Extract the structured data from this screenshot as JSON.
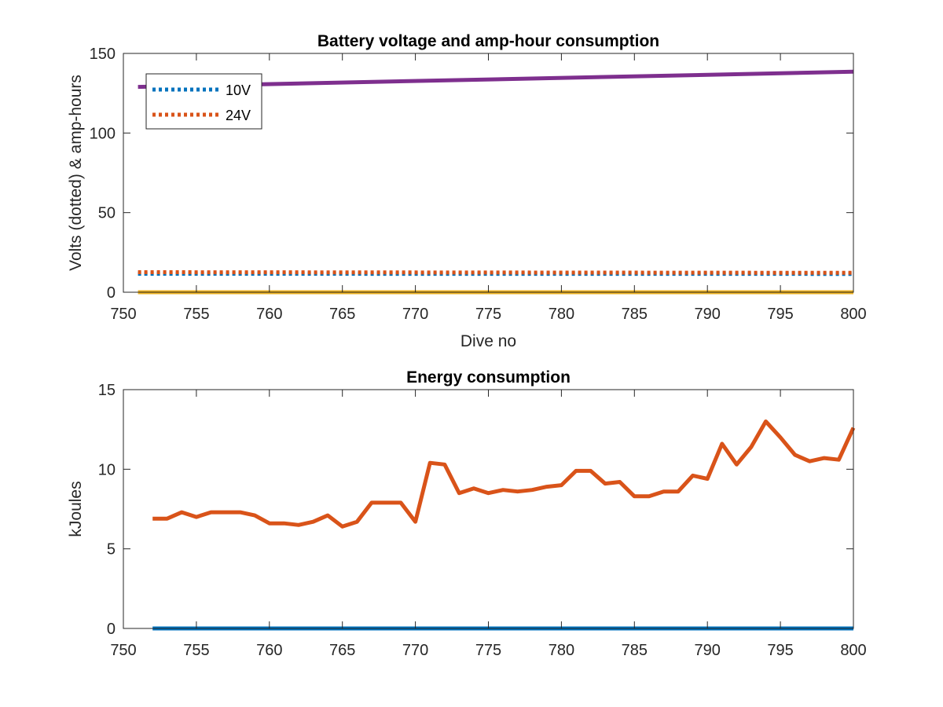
{
  "chart_data": [
    {
      "type": "line",
      "title": "Battery voltage and amp-hour consumption",
      "xlabel": "Dive no",
      "ylabel": "Volts (dotted) & amp-hours",
      "xlim": [
        750,
        800
      ],
      "ylim": [
        0,
        150
      ],
      "xticks": [
        750,
        755,
        760,
        765,
        770,
        775,
        780,
        785,
        790,
        795,
        800
      ],
      "yticks": [
        0,
        50,
        100,
        150
      ],
      "grid": false,
      "legend_position": "top-left",
      "series": [
        {
          "name": "10V",
          "style": "dotted",
          "color": "#0072BD",
          "x": [
            751,
            800
          ],
          "values": [
            11.6,
            11.5
          ]
        },
        {
          "name": "24V",
          "style": "dotted",
          "color": "#D95319",
          "x": [
            751,
            800
          ],
          "values": [
            12.6,
            12.2
          ]
        },
        {
          "style": "solid",
          "color": "#7E2F8E",
          "x": [
            751,
            800
          ],
          "values": [
            129,
            138.5
          ]
        },
        {
          "style": "solid",
          "color": "#EDB120",
          "x": [
            751,
            800
          ],
          "values": [
            0,
            0
          ]
        }
      ]
    },
    {
      "type": "line",
      "title": "Energy consumption",
      "xlabel": "",
      "ylabel": "kJoules",
      "xlim": [
        750,
        800
      ],
      "ylim": [
        0,
        15
      ],
      "xticks": [
        750,
        755,
        760,
        765,
        770,
        775,
        780,
        785,
        790,
        795,
        800
      ],
      "yticks": [
        0,
        5,
        10,
        15
      ],
      "grid": false,
      "series": [
        {
          "style": "solid",
          "color": "#0072BD",
          "x": [
            752,
            800
          ],
          "values": [
            0,
            0
          ]
        },
        {
          "style": "solid",
          "color": "#D95319",
          "x": [
            752,
            753,
            754,
            755,
            756,
            757,
            758,
            759,
            760,
            761,
            762,
            763,
            764,
            765,
            766,
            767,
            768,
            769,
            770,
            771,
            772,
            773,
            774,
            775,
            776,
            777,
            778,
            779,
            780,
            781,
            782,
            783,
            784,
            785,
            786,
            787,
            788,
            789,
            790,
            791,
            792,
            793,
            794,
            795,
            796,
            797,
            798,
            799,
            800
          ],
          "values": [
            6.9,
            6.9,
            7.3,
            7.0,
            7.3,
            7.3,
            7.3,
            7.1,
            6.6,
            6.6,
            6.5,
            6.7,
            7.1,
            6.4,
            6.7,
            7.9,
            7.9,
            7.9,
            6.7,
            10.4,
            10.3,
            8.5,
            8.8,
            8.5,
            8.7,
            8.6,
            8.7,
            8.9,
            9.0,
            9.9,
            9.9,
            9.1,
            9.2,
            8.3,
            8.3,
            8.6,
            8.6,
            9.6,
            9.4,
            11.6,
            10.3,
            11.4,
            13.0,
            12.0,
            10.9,
            10.5,
            10.7,
            10.6,
            12.6
          ]
        }
      ]
    }
  ]
}
